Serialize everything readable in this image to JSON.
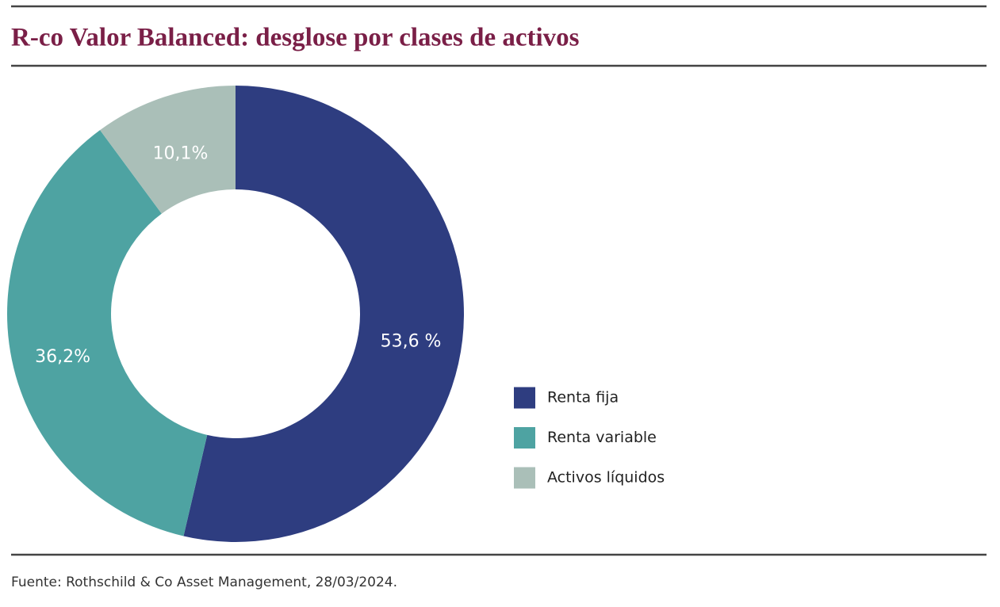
{
  "chart_data": {
    "type": "pie",
    "title": "R-co Valor Balanced: desglose por clases de activos",
    "categories": [
      "Renta fija",
      "Renta variable",
      "Activos líquidos"
    ],
    "values": [
      53.6,
      36.2,
      10.1
    ],
    "value_labels": [
      "53,6 %",
      "36,2%",
      "10,1%"
    ],
    "colors": [
      "#2e3d80",
      "#4ea3a2",
      "#aabfb8"
    ],
    "source": "Fuente: Rothschild & Co Asset Management, 28/03/2024."
  }
}
